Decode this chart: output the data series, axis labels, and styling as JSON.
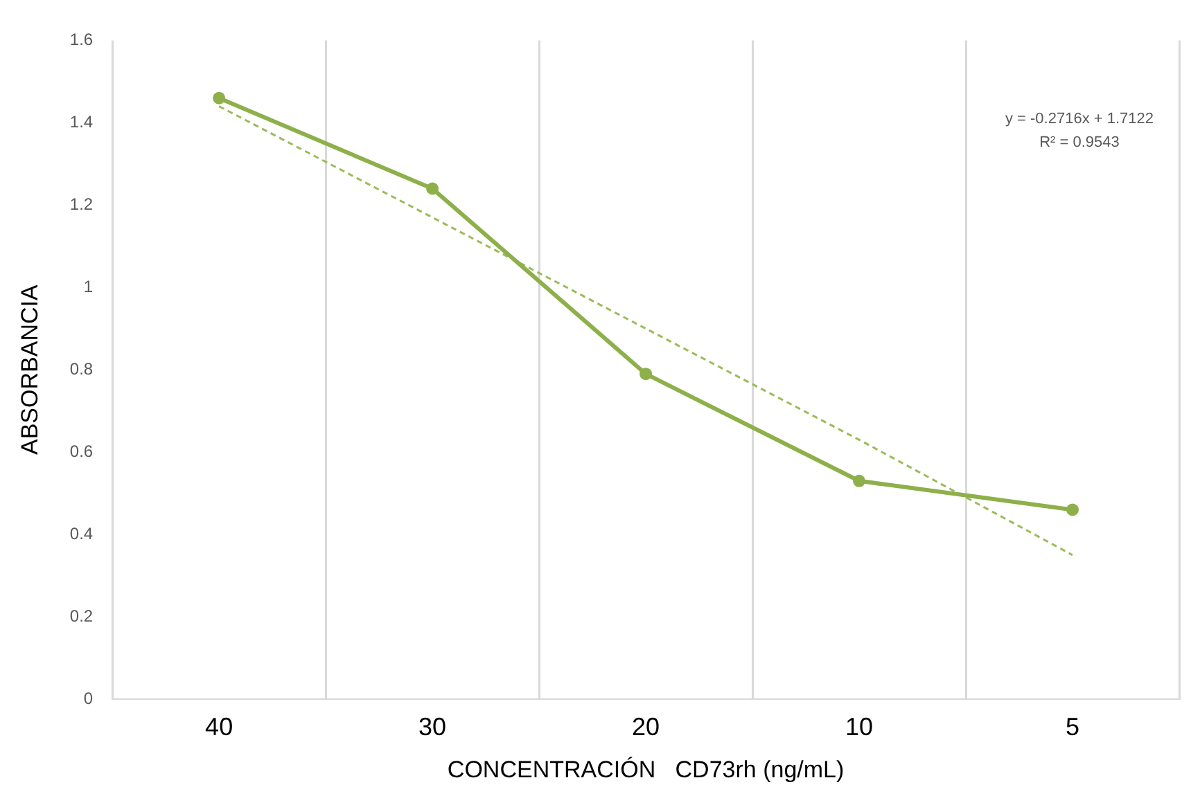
{
  "chart_data": {
    "type": "line",
    "xlabel": "CONCENTRACIÓN   CD73rh (ng/mL)",
    "ylabel": "ABSORBANCIA",
    "categories": [
      "40",
      "30",
      "20",
      "10",
      "5"
    ],
    "series": [
      {
        "color": "#8db04a",
        "values": [
          1.46,
          1.24,
          0.79,
          0.53,
          0.46
        ],
        "marker": "circle",
        "line_style": "solid"
      },
      {
        "type": "line",
        "x": [
          "40",
          "30",
          "20",
          "10",
          "5"
        ],
        "color": "#9bbb59",
        "values": [
          1.44,
          1.17,
          0.9,
          0.63,
          0.35
        ],
        "marker": "none",
        "line_style": "dashed"
      }
    ],
    "ylim": [
      0,
      1.6
    ],
    "yticks": [
      0,
      0.2,
      0.4,
      0.6,
      0.8,
      1,
      1.2,
      1.4,
      1.6
    ],
    "grid": "x",
    "legend": false,
    "annotations": [
      "y = -0.2716x + 1.7122",
      "R² = 0.9543"
    ]
  }
}
